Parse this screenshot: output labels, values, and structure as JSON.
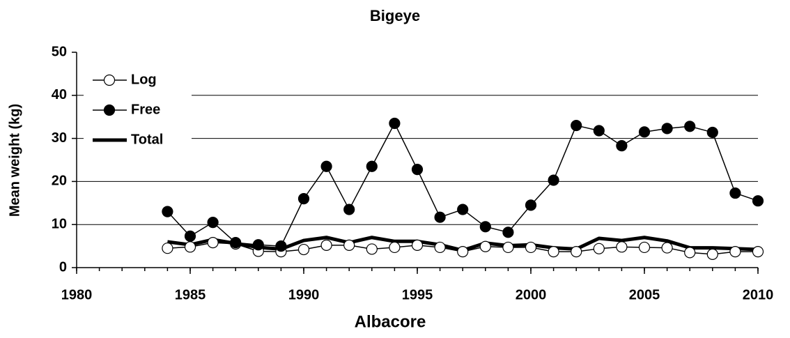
{
  "chart_data": {
    "type": "line",
    "title": "Bigeye",
    "xlabel": "Albacore",
    "ylabel": "Mean weight (kg)",
    "x": [
      1984,
      1985,
      1986,
      1987,
      1988,
      1989,
      1990,
      1991,
      1992,
      1993,
      1994,
      1995,
      1996,
      1997,
      1998,
      1999,
      2000,
      2001,
      2002,
      2003,
      2004,
      2005,
      2006,
      2007,
      2008,
      2009,
      2010
    ],
    "series": [
      {
        "name": "Log",
        "color": "#000000",
        "marker": "open-circle",
        "line_width": 1.5,
        "values": [
          4.5,
          4.8,
          5.8,
          5.5,
          3.8,
          3.7,
          4.2,
          5.2,
          5.2,
          4.3,
          4.7,
          5.2,
          4.7,
          3.7,
          4.9,
          4.7,
          4.7,
          3.7,
          3.7,
          4.4,
          4.8,
          4.7,
          4.6,
          3.5,
          3.1,
          3.7,
          3.7
        ]
      },
      {
        "name": "Free",
        "color": "#000000",
        "marker": "filled-circle",
        "line_width": 1.5,
        "values": [
          13,
          7.3,
          10.5,
          5.8,
          5.3,
          5.0,
          16,
          23.5,
          13.5,
          23.5,
          33.5,
          22.8,
          11.7,
          13.5,
          9.5,
          8.2,
          14.5,
          20.3,
          33,
          31.8,
          28.3,
          31.5,
          32.3,
          32.8,
          31.4,
          17.3,
          15.5
        ]
      },
      {
        "name": "Total",
        "color": "#000000",
        "marker": "none",
        "line_width": 5,
        "values": [
          6,
          5.3,
          6.5,
          5.6,
          4.7,
          4.3,
          6.3,
          7,
          5.8,
          7,
          6.1,
          6.1,
          5.3,
          4,
          5.7,
          5.1,
          5.3,
          4.6,
          4.3,
          6.8,
          6.3,
          7,
          6.2,
          4.6,
          4.6,
          4.4,
          4.2
        ]
      }
    ],
    "xlim": [
      1980,
      2010
    ],
    "xticks": [
      1980,
      1985,
      1990,
      1995,
      2000,
      2005,
      2010
    ],
    "ylim": [
      0,
      50
    ],
    "yticks": [
      0,
      10,
      20,
      30,
      40,
      50
    ],
    "grid": true,
    "legend": "upper-left"
  }
}
